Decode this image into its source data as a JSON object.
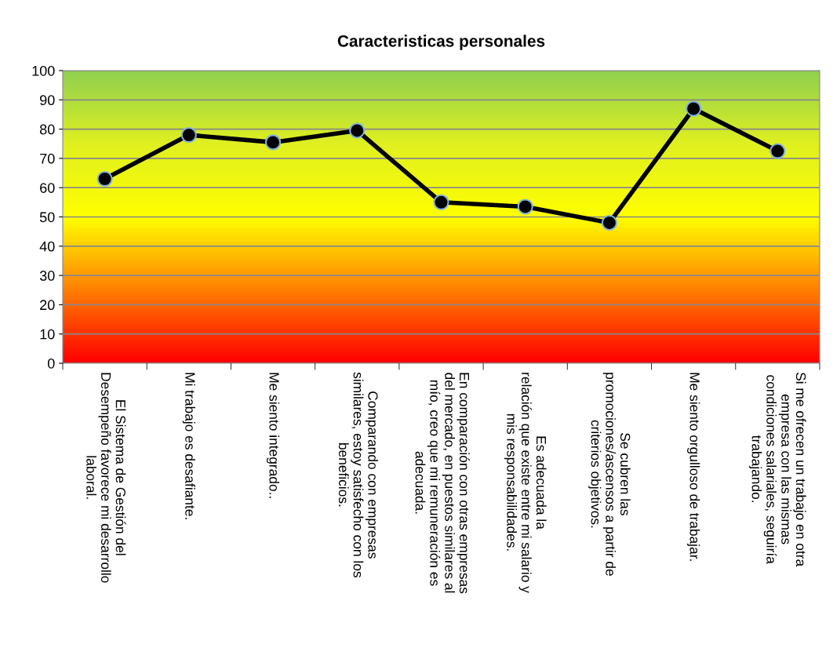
{
  "chart_data": {
    "type": "line",
    "title": "Caracteristicas personales",
    "categories": [
      "El Sistema de Gestión del\nDesempeño favorece mi desarrollo\nlaboral.",
      "Mi trabajo es desafiante.",
      "Me siento integrado..",
      "Comparando con empresas\nsimilares, estoy satisfecho con los\nbeneficios.",
      "En comparación con otras empresas\ndel mercado, en puestos similares al\nmío, creo que mi remuneración es\nadecuada.",
      "Es adecuada la\nrelación que existe entre mi salario y\nmis responsabilidades.",
      "Se cubren las\npromociones/ascensos a partir de\ncriterios objetivos.",
      "Me siento orgulloso de trabajar.",
      "Si me ofrecen un trabajo en otra\nempresa con las mismas\ncondiciones salariales, seguiría\ntrabajando."
    ],
    "series": [
      {
        "color": "#000000",
        "values": [
          63,
          78,
          75.5,
          79.5,
          55,
          53.5,
          48,
          87,
          72.5
        ]
      }
    ],
    "ylim": [
      0,
      100
    ],
    "yticks": [
      0,
      10,
      20,
      30,
      40,
      50,
      60,
      70,
      80,
      90,
      100
    ],
    "grid": "y",
    "legend": false,
    "marker": "circle",
    "line_style": "solid"
  }
}
